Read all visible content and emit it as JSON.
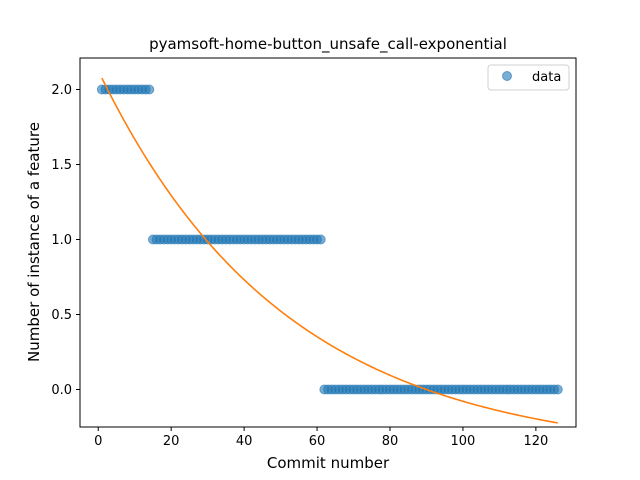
{
  "chart_data": {
    "type": "scatter",
    "title": "pyamsoft-home-button_unsafe_call-exponential",
    "xlabel": "Commit number",
    "ylabel": "Number of instance of a feature",
    "xlim": [
      -5,
      131
    ],
    "ylim": [
      -0.25,
      2.21
    ],
    "xticks": [
      0,
      20,
      40,
      60,
      80,
      100,
      120
    ],
    "yticks": [
      0.0,
      0.5,
      1.0,
      1.5,
      2.0
    ],
    "ytick_labels": [
      "0.0",
      "0.5",
      "1.0",
      "1.5",
      "2.0"
    ],
    "grid": false,
    "legend": {
      "position": "top-right",
      "entries": [
        "data"
      ]
    },
    "colors": {
      "data": "#1f77b4",
      "fit": "#ff7f0e"
    },
    "series": [
      {
        "name": "data",
        "kind": "scatter",
        "segments": [
          {
            "x_start": 1,
            "x_end": 14,
            "y": 2.0
          },
          {
            "x_start": 15,
            "x_end": 61,
            "y": 1.0
          },
          {
            "x_start": 62,
            "x_end": 126,
            "y": 0.0
          }
        ]
      },
      {
        "kind": "line",
        "model": "exponential",
        "params": {
          "a": 2.566,
          "b": 0.0196,
          "c": -0.44
        },
        "x_range": [
          1,
          126
        ]
      }
    ]
  }
}
